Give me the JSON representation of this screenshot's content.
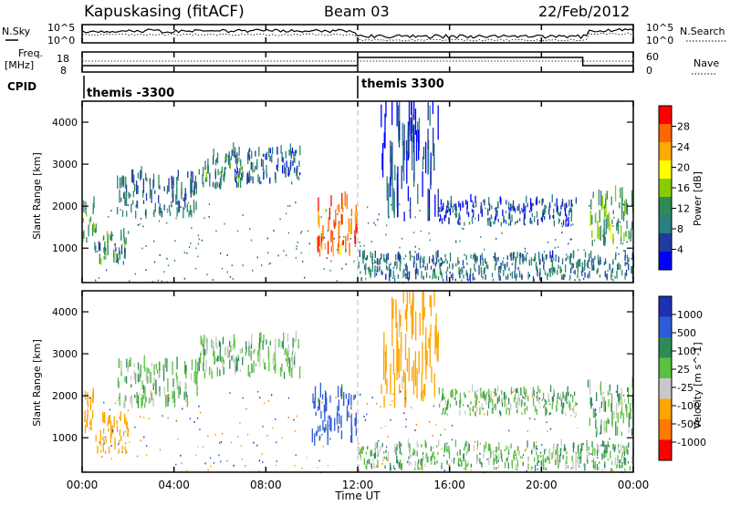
{
  "header": {
    "station": "Kapuskasing (fitACF)",
    "beam": "Beam 03",
    "date": "22/Feb/2012"
  },
  "top_panels": {
    "nsky_label": "N.Sky",
    "nsearch_label": "N.Search",
    "freq_label_1": "Freq.",
    "freq_label_2": "[MHz]",
    "nave_label": "Nave",
    "cpid_label": "CPID",
    "left_ticks_noise": [
      "10^5",
      "10^0"
    ],
    "right_ticks_noise": [
      "10^5",
      "10^0"
    ],
    "left_ticks_freq": [
      "18",
      "8"
    ],
    "right_ticks_nave": [
      "60",
      "0"
    ],
    "cpid_segments": [
      {
        "label": "themis -3300",
        "start_hour": 0,
        "end_hour": 12
      },
      {
        "label": "themis 3300",
        "start_hour": 12,
        "end_hour": 24
      }
    ]
  },
  "time_axis": {
    "title": "Time UT",
    "ticks": [
      "00:00",
      "04:00",
      "08:00",
      "12:00",
      "16:00",
      "20:00",
      "00:00"
    ]
  },
  "power_colorbar": {
    "title": "Power [dB]",
    "ticks": [
      "28",
      "24",
      "20",
      "16",
      "12",
      "8",
      "4"
    ],
    "colors": [
      "#ff0000",
      "#ff6600",
      "#ffaa00",
      "#ffff00",
      "#88cc00",
      "#2e8b57",
      "#2a7f7f",
      "#1e3ca0",
      "#0000ff"
    ]
  },
  "velocity_colorbar": {
    "title": "Velocity [m s^-1]",
    "ticks": [
      "1000",
      "500",
      "100",
      "25",
      "-25",
      "-100",
      "-500",
      "-1000"
    ],
    "colors": [
      "#1e2fb4",
      "#2e5bd8",
      "#2e8b57",
      "#5cc040",
      "#c8c8c8",
      "#ffa500",
      "#ff7a00",
      "#ff0000"
    ]
  },
  "chart_data": [
    {
      "type": "heatmap",
      "title": "Power",
      "xlabel": "Time UT",
      "ylabel": "Slant Range [km]",
      "xlim_hours": [
        0,
        24
      ],
      "ylim": [
        180,
        4500
      ],
      "yticks": [
        1000,
        2000,
        3000,
        4000
      ],
      "colorbar": {
        "label": "Power [dB]",
        "range": [
          0,
          30
        ]
      },
      "echo_bands": [
        {
          "t0": 0.0,
          "t1": 0.5,
          "r0": 1100,
          "r1": 2000,
          "level": 14
        },
        {
          "t0": 0.5,
          "t1": 2.0,
          "r0": 600,
          "r1": 1400,
          "level": 10
        },
        {
          "t0": 1.5,
          "t1": 5.0,
          "r0": 1700,
          "r1": 2700,
          "level": 8
        },
        {
          "t0": 5.0,
          "t1": 7.0,
          "r0": 2400,
          "r1": 3200,
          "level": 10
        },
        {
          "t0": 6.5,
          "t1": 9.5,
          "r0": 2500,
          "r1": 3300,
          "level": 6
        },
        {
          "t0": 10.2,
          "t1": 12.0,
          "r0": 800,
          "r1": 2000,
          "level": 24
        },
        {
          "t0": 12.0,
          "t1": 24.0,
          "r0": 200,
          "r1": 800,
          "level": 8
        },
        {
          "t0": 13.0,
          "t1": 15.5,
          "r0": 1600,
          "r1": 4200,
          "level": 5
        },
        {
          "t0": 15.5,
          "t1": 21.5,
          "r0": 1500,
          "r1": 2100,
          "level": 6
        },
        {
          "t0": 22.0,
          "t1": 24.0,
          "r0": 1000,
          "r1": 2200,
          "level": 12
        }
      ]
    },
    {
      "type": "heatmap",
      "title": "Velocity",
      "xlabel": "Time UT",
      "ylabel": "Slant Range [km]",
      "xlim_hours": [
        0,
        24
      ],
      "ylim": [
        180,
        4500
      ],
      "yticks": [
        1000,
        2000,
        3000,
        4000
      ],
      "colorbar": {
        "label": "Velocity [m s^-1]",
        "range": [
          -1000,
          1000
        ]
      },
      "echo_bands": [
        {
          "t0": 0.0,
          "t1": 0.5,
          "r0": 1100,
          "r1": 2000,
          "vel": -200
        },
        {
          "t0": 0.5,
          "t1": 2.0,
          "r0": 600,
          "r1": 1400,
          "vel": -400
        },
        {
          "t0": 1.5,
          "t1": 5.0,
          "r0": 1700,
          "r1": 2700,
          "vel": 0
        },
        {
          "t0": 5.0,
          "t1": 9.5,
          "r0": 2400,
          "r1": 3300,
          "vel": 0
        },
        {
          "t0": 10.0,
          "t1": 12.0,
          "r0": 800,
          "r1": 2000,
          "vel": 150
        },
        {
          "t0": 12.0,
          "t1": 24.0,
          "r0": 200,
          "r1": 800,
          "vel": 0
        },
        {
          "t0": 13.0,
          "t1": 15.5,
          "r0": 1600,
          "r1": 4200,
          "vel": -150
        },
        {
          "t0": 15.5,
          "t1": 21.5,
          "r0": 1500,
          "r1": 2100,
          "vel": 0
        },
        {
          "t0": 22.0,
          "t1": 24.0,
          "r0": 1000,
          "r1": 2200,
          "vel": 0
        }
      ]
    }
  ]
}
